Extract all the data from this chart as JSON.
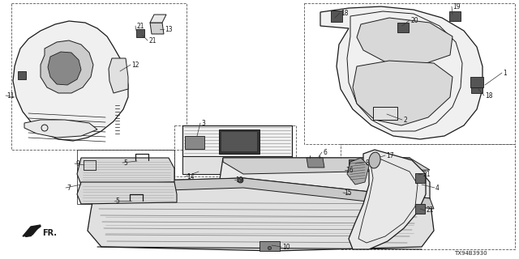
{
  "bg_color": "#ffffff",
  "line_color": "#1a1a1a",
  "diagram_id": "TX94B3930",
  "fig_w": 6.4,
  "fig_h": 3.2,
  "dpi": 100
}
